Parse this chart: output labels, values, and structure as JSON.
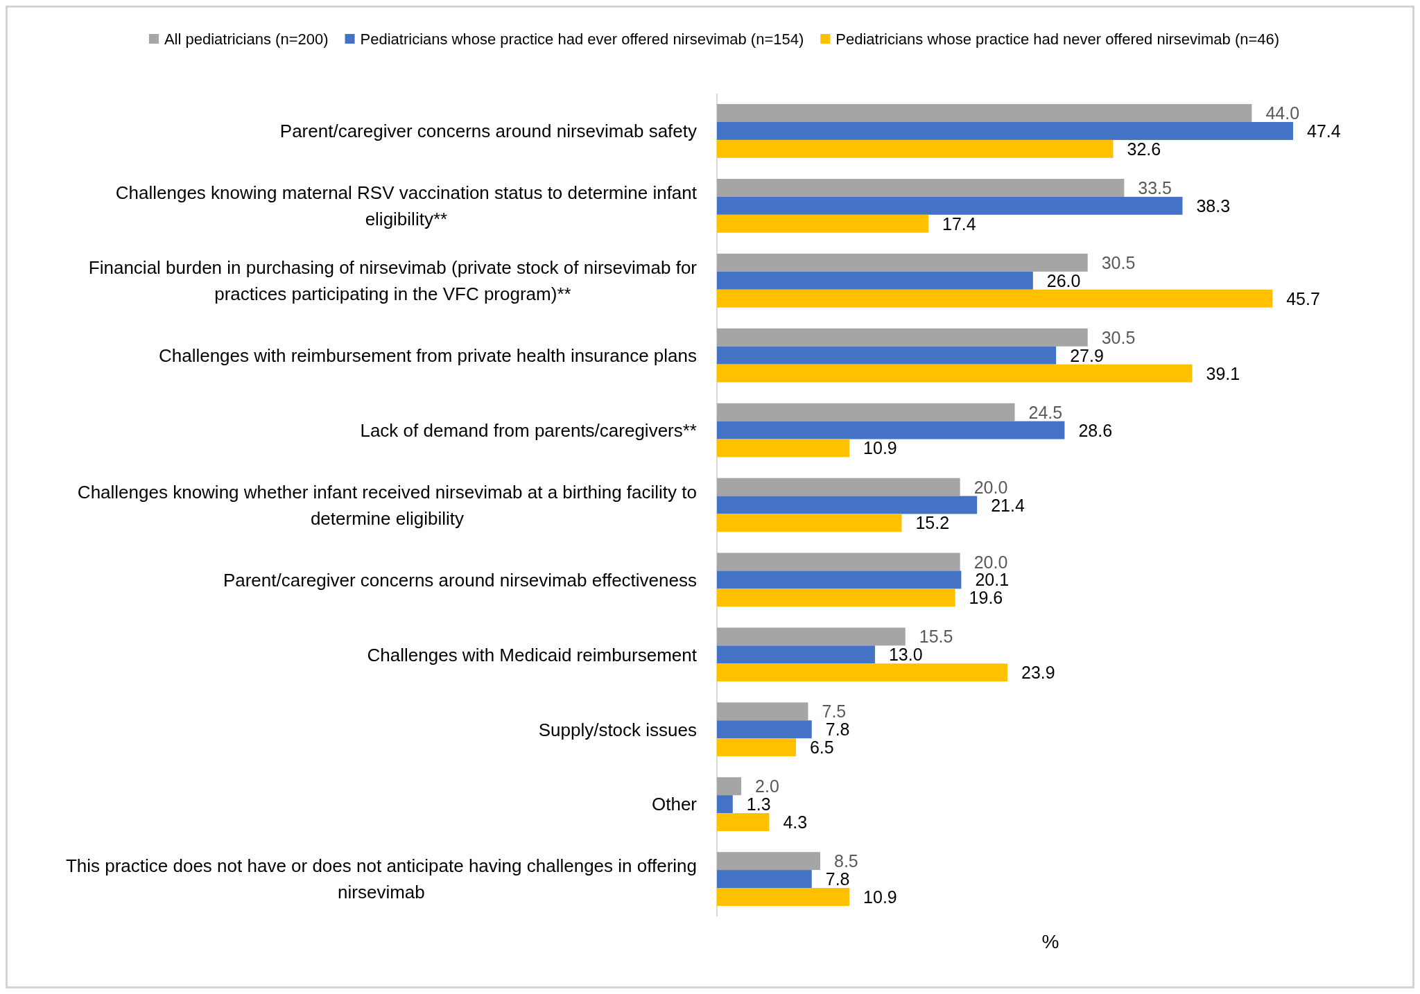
{
  "chart_data": {
    "type": "bar",
    "orientation": "horizontal",
    "legend": "top",
    "tick_labels": "y",
    "xlabel": "%",
    "categories": [
      "Parent/caregiver concerns around nirsevimab safety",
      "Challenges knowing maternal RSV vaccination status to determine infant eligibility**",
      "Financial burden in purchasing of nirsevimab (private stock of nirsevimab for practices participating in the VFC program)**",
      "Challenges with reimbursement from private health insurance plans",
      "Lack of demand from parents/caregivers**",
      "Challenges knowing whether infant received nirsevimab at a birthing facility to determine eligibility",
      "Parent/caregiver concerns around nirsevimab effectiveness",
      "Challenges with Medicaid reimbursement",
      "Supply/stock issues",
      "Other",
      "This practice does not have or does not anticipate having challenges in offering nirsevimab"
    ],
    "series": [
      {
        "name": "All pediatricians (n=200)",
        "color": "#a5a5a5",
        "values": [
          44.0,
          33.5,
          30.5,
          30.5,
          24.5,
          20.0,
          20.0,
          15.5,
          7.5,
          2.0,
          8.5
        ],
        "value_labels": [
          "44.0",
          "33.5",
          "30.5",
          "30.5",
          "24.5",
          "20.0",
          "20.0",
          "15.5",
          "7.5",
          "2.0",
          "8.5"
        ]
      },
      {
        "name": "Pediatricians whose practice had ever offered nirsevimab (n=154)",
        "color": "#4472c4",
        "values": [
          47.4,
          38.3,
          26.0,
          27.9,
          28.6,
          21.4,
          20.1,
          13.0,
          7.8,
          1.3,
          7.8
        ],
        "value_labels": [
          "47.4",
          "38.3",
          "26.0",
          "27.9",
          "28.6",
          "21.4",
          "20.1",
          "13.0",
          "7.8",
          "1.3",
          "7.8"
        ]
      },
      {
        "name": "Pediatricians whose practice had never offered nirsevimab (n=46)",
        "color": "#ffc000",
        "values": [
          32.6,
          17.4,
          45.7,
          39.1,
          10.9,
          15.2,
          19.6,
          23.9,
          6.5,
          4.3,
          10.9
        ],
        "value_labels": [
          "32.6",
          "17.4",
          "45.7",
          "39.1",
          "10.9",
          "15.2",
          "19.6",
          "23.9",
          "6.5",
          "4.3",
          "10.9"
        ]
      }
    ]
  }
}
